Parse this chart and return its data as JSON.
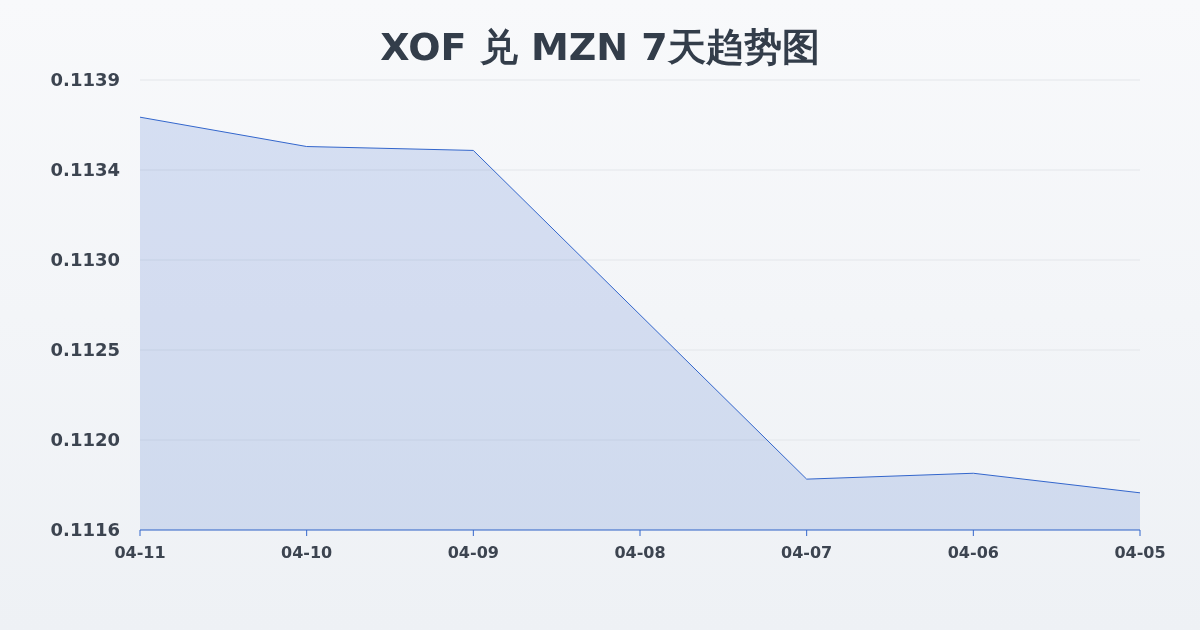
{
  "chart_data": {
    "type": "area",
    "title": "XOF 兑 MZN 7天趋势图",
    "categories": [
      "04-11",
      "04-10",
      "04-09",
      "04-08",
      "04-07",
      "04-06",
      "04-05"
    ],
    "values": [
      0.11369,
      0.11354,
      0.11352,
      0.11268,
      0.11184,
      0.11187,
      0.11177
    ],
    "color": "#3366cc",
    "ylim": [
      0.11158,
      0.11388
    ],
    "yticks": [
      {
        "value": 0.11158,
        "label": "0.1116"
      },
      {
        "value": 0.11204,
        "label": "0.1120"
      },
      {
        "value": 0.1125,
        "label": "0.1125"
      },
      {
        "value": 0.11296,
        "label": "0.1130"
      },
      {
        "value": 0.11342,
        "label": "0.1134"
      },
      {
        "value": 0.11388,
        "label": "0.1139"
      }
    ],
    "grid": "y"
  }
}
